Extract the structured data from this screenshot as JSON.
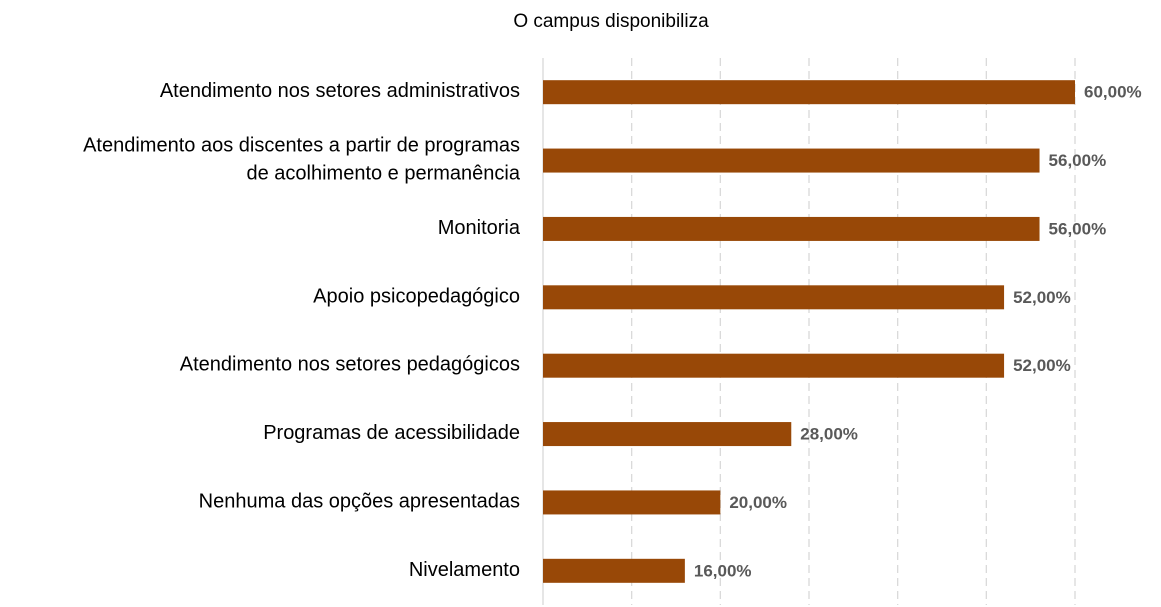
{
  "chart_data": {
    "type": "barh",
    "title": "O campus disponibiliza",
    "categories": [
      "Atendimento nos setores administrativos",
      "Atendimento aos discentes a partir de programas\nde acolhimento e permanência",
      "Monitoria",
      "Apoio psicopedagógico",
      "Atendimento nos  setores pedagógicos",
      "Programas de acessibilidade",
      "Nenhuma das opções apresentadas",
      "Nivelamento"
    ],
    "values": [
      60,
      56,
      56,
      52,
      52,
      28,
      20,
      16
    ],
    "value_labels": [
      "60,00%",
      "56,00%",
      "56,00%",
      "52,00%",
      "52,00%",
      "28,00%",
      "20,00%",
      "16,00%"
    ],
    "color": "#984807",
    "xlim": [
      0,
      60
    ],
    "xticks": [
      0,
      10,
      20,
      30,
      40,
      50,
      60
    ],
    "grid": true
  }
}
